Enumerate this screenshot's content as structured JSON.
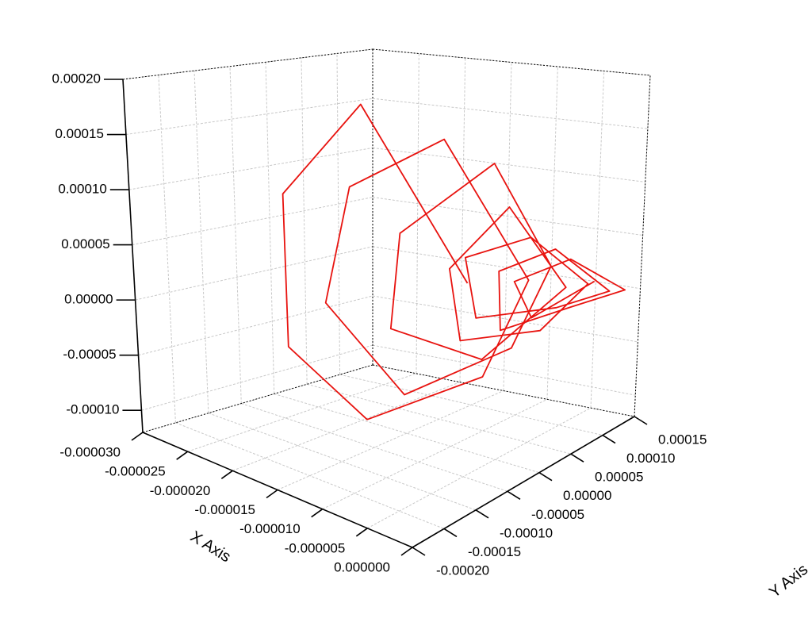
{
  "chart_data": {
    "type": "line3d",
    "color": "#e8130f",
    "x": [
      -1.2e-05,
      -2e-05,
      -2.7e-05,
      -2.6e-05,
      -1.8e-05,
      -8e-06,
      -6e-06,
      -1.4e-05,
      -2.2e-05,
      -2.4e-05,
      -1.6e-05,
      -7e-06,
      -5e-06,
      -1e-05,
      -1.8e-05,
      -1.9e-05,
      -1.1e-05,
      -4e-06,
      -9e-06,
      -1.4e-05,
      -1.2e-05,
      -6e-06,
      -3e-06,
      -8e-06,
      -1.3e-05,
      -1.1e-05,
      -5e-06,
      -2e-06,
      -6e-06,
      -1e-05,
      -9e-06,
      -4e-06,
      -1e-06,
      -5e-06,
      -9e-06,
      -7e-06,
      -3e-06
    ],
    "y": [
      5e-05,
      0.0,
      -2e-05,
      -3e-05,
      -2e-05,
      2e-05,
      6e-05,
      4e-05,
      1e-05,
      0.0,
      1e-05,
      5e-05,
      8e-05,
      6e-05,
      3e-05,
      3e-05,
      6e-05,
      9e-05,
      7e-05,
      5e-05,
      4e-05,
      8e-05,
      0.00011,
      9e-05,
      6e-05,
      5e-05,
      9e-05,
      0.00013,
      0.0001,
      7e-05,
      6e-05,
      0.0001,
      0.00014,
      0.00011,
      8e-05,
      8e-05,
      0.00012
    ],
    "z": [
      1e-05,
      0.00017,
      8e-05,
      -6e-05,
      -0.00011,
      -6e-05,
      2e-05,
      0.00014,
      9e-05,
      -2e-05,
      -9e-05,
      -4e-05,
      3e-05,
      0.00012,
      5e-05,
      -4e-05,
      -6e-05,
      1e-05,
      8e-05,
      2e-05,
      -4e-05,
      -3e-05,
      1e-05,
      5e-05,
      3e-05,
      -2e-05,
      -1e-05,
      0.0,
      4e-05,
      2e-05,
      -3e-05,
      -1e-05,
      0.0,
      3e-05,
      1e-05,
      -2e-05,
      1e-05
    ],
    "xlim": [
      -3e-05,
      0
    ],
    "ylim": [
      -0.0002,
      0.00015
    ],
    "zlim": [
      -0.00012,
      0.0002
    ],
    "xticks": [
      {
        "value": -3e-05,
        "label": "-0.000030"
      },
      {
        "value": -2.5e-05,
        "label": "-0.000025"
      },
      {
        "value": -2e-05,
        "label": "-0.000020"
      },
      {
        "value": -1.5e-05,
        "label": "-0.000015"
      },
      {
        "value": -1e-05,
        "label": "-0.000010"
      },
      {
        "value": -5e-06,
        "label": "-0.000005"
      },
      {
        "value": 0,
        "label": "0.000000"
      }
    ],
    "yticks": [
      {
        "value": -0.0002,
        "label": "-0.00020"
      },
      {
        "value": -0.00015,
        "label": "-0.00015"
      },
      {
        "value": -0.0001,
        "label": "-0.00010"
      },
      {
        "value": -5e-05,
        "label": "-0.00005"
      },
      {
        "value": 0,
        "label": "0.00000"
      },
      {
        "value": 5e-05,
        "label": "0.00005"
      },
      {
        "value": 0.0001,
        "label": "0.00010"
      },
      {
        "value": 0.00015,
        "label": "0.00015"
      }
    ],
    "zticks": [
      {
        "value": -0.0001,
        "label": "-0.00010"
      },
      {
        "value": -5e-05,
        "label": "-0.00005"
      },
      {
        "value": 0,
        "label": "0.00000"
      },
      {
        "value": 5e-05,
        "label": "0.00005"
      },
      {
        "value": 0.0001,
        "label": "0.00010"
      },
      {
        "value": 0.00015,
        "label": "0.00015"
      },
      {
        "value": 0.0002,
        "label": "0.00020"
      }
    ],
    "xlabel": "X Axis",
    "ylabel": "Y Axis",
    "grid": true
  }
}
